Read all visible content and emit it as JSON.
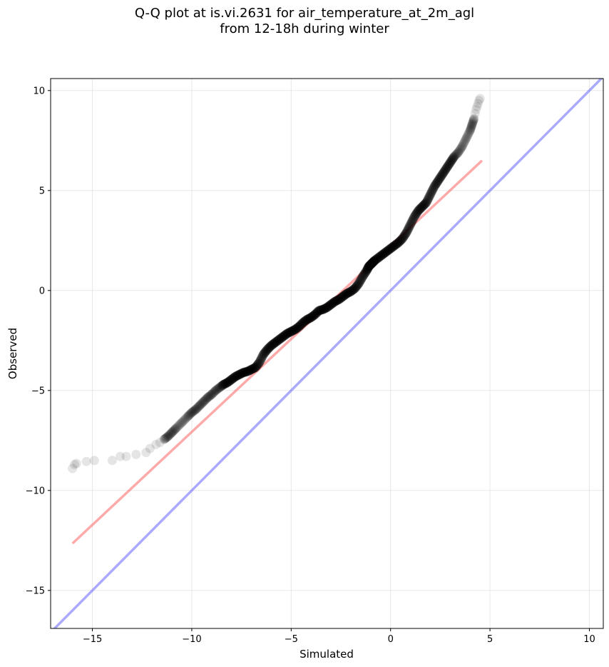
{
  "chart_data": {
    "type": "scatter",
    "title_line1": "Q-Q plot at is.vi.2631 for air_temperature_at_2m_agl",
    "title_line2": "from 12-18h during winter",
    "xlabel": "Simulated",
    "ylabel": "Observed",
    "xlim": [
      -17.1,
      10.7
    ],
    "ylim": [
      -16.9,
      10.6
    ],
    "xticks": [
      -15,
      -10,
      -5,
      0,
      5,
      10
    ],
    "yticks": [
      -15,
      -10,
      -5,
      0,
      5,
      10
    ],
    "xtick_labels": [
      "−15",
      "−10",
      "−5",
      "0",
      "5",
      "10"
    ],
    "ytick_labels": [
      "−15",
      "−10",
      "−5",
      "0",
      "5",
      "10"
    ],
    "grid": true,
    "colors": {
      "points": "#000000",
      "fit_line": "#ff5555",
      "identity_line": "#5555ff",
      "grid": "#d8d8d8"
    },
    "quantiles": {
      "x": [
        -16.0,
        -15.9,
        -15.8,
        -15.3,
        -14.9,
        -14.0,
        -13.6,
        -13.3,
        -12.8,
        -12.3,
        -12.1,
        -11.8,
        -11.6,
        -11.4,
        -11.2,
        -11.0,
        -10.8,
        -10.5,
        -10.2,
        -10.0,
        -9.8,
        -9.6,
        -9.4,
        -9.2,
        -9.0,
        -8.8,
        -8.6,
        -8.4,
        -8.2,
        -8.0,
        -7.8,
        -7.6,
        -7.4,
        -7.2,
        -7.0,
        -6.8,
        -6.6,
        -6.4,
        -6.2,
        -6.0,
        -5.8,
        -5.6,
        -5.4,
        -5.2,
        -5.0,
        -4.8,
        -4.6,
        -4.4,
        -4.2,
        -4.0,
        -3.8,
        -3.6,
        -3.4,
        -3.2,
        -3.0,
        -2.8,
        -2.6,
        -2.4,
        -2.2,
        -2.0,
        -1.8,
        -1.6,
        -1.4,
        -1.2,
        -1.1,
        -1.0,
        -0.9,
        -0.8,
        -0.6,
        -0.4,
        -0.2,
        0.0,
        0.2,
        0.4,
        0.6,
        0.8,
        1.0,
        1.2,
        1.4,
        1.6,
        1.8,
        2.0,
        2.2,
        2.4,
        2.6,
        2.8,
        3.0,
        3.2,
        3.4,
        3.6,
        3.8,
        4.0,
        4.1,
        4.2,
        4.25,
        4.3,
        4.35,
        4.4,
        4.45,
        4.5
      ],
      "y": [
        -8.9,
        -8.7,
        -8.65,
        -8.55,
        -8.5,
        -8.5,
        -8.3,
        -8.3,
        -8.2,
        -8.1,
        -7.9,
        -7.7,
        -7.6,
        -7.45,
        -7.3,
        -7.1,
        -6.9,
        -6.6,
        -6.3,
        -6.1,
        -5.95,
        -5.75,
        -5.55,
        -5.35,
        -5.2,
        -5.0,
        -4.85,
        -4.7,
        -4.6,
        -4.45,
        -4.3,
        -4.2,
        -4.1,
        -4.05,
        -3.95,
        -3.85,
        -3.6,
        -3.2,
        -2.95,
        -2.75,
        -2.6,
        -2.45,
        -2.3,
        -2.15,
        -2.05,
        -1.95,
        -1.8,
        -1.6,
        -1.45,
        -1.35,
        -1.2,
        -1.0,
        -0.95,
        -0.85,
        -0.7,
        -0.55,
        -0.45,
        -0.3,
        -0.15,
        -0.05,
        0.1,
        0.35,
        0.7,
        1.0,
        1.2,
        1.3,
        1.4,
        1.5,
        1.65,
        1.8,
        1.95,
        2.1,
        2.25,
        2.4,
        2.6,
        2.9,
        3.3,
        3.7,
        4.0,
        4.2,
        4.4,
        4.8,
        5.2,
        5.5,
        5.8,
        6.1,
        6.4,
        6.7,
        6.9,
        7.2,
        7.6,
        8.0,
        8.3,
        8.6,
        8.85,
        9.05,
        9.2,
        9.35,
        9.5,
        9.6
      ]
    },
    "fit_line": {
      "x": [
        -16.0,
        4.6
      ],
      "y": [
        -12.65,
        6.5
      ]
    },
    "identity_line": {
      "x": [
        -17.1,
        10.7
      ],
      "y": [
        -17.1,
        10.7
      ]
    }
  }
}
